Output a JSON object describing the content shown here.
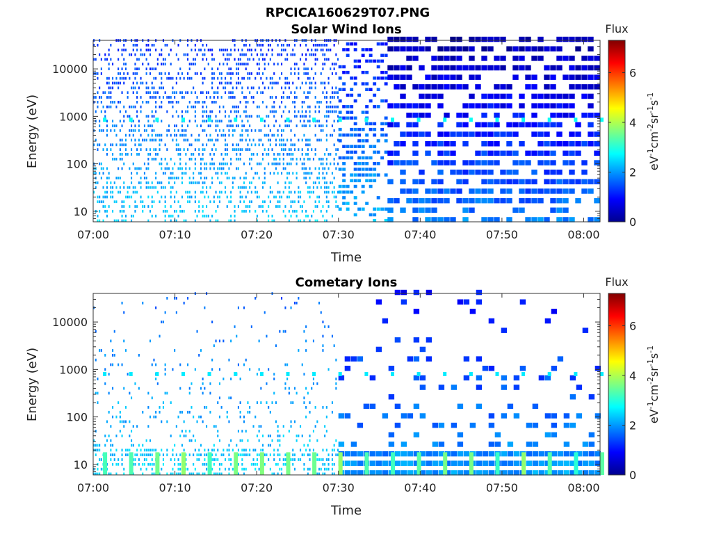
{
  "figure_title": "RPCICA160629T07.PNG",
  "colors": {
    "colormap": "jet",
    "background": "#ffffff"
  },
  "chart_data": [
    {
      "type": "heatmap",
      "title": "Solar Wind Ions",
      "xlabel": "Time",
      "ylabel": "Energy (eV)",
      "x_range": [
        "07:00",
        "08:02"
      ],
      "x_ticks": [
        "07:00",
        "07:10",
        "07:20",
        "07:30",
        "07:40",
        "07:50",
        "08:00"
      ],
      "y_scale": "log",
      "ylim": [
        6,
        40000
      ],
      "y_ticks": [
        10,
        100,
        1000,
        10000
      ],
      "colorbar": {
        "title": "Flux",
        "label": "eV-1cm-2sr-1s-1",
        "range": [
          0,
          7.3
        ],
        "ticks": [
          0,
          2,
          4,
          6
        ]
      },
      "segments": [
        {
          "x_start": "07:00",
          "x_end": "07:30",
          "energy_range": [
            6,
            40000
          ],
          "occupancy": 0.35,
          "flux_levels": [
            1.2,
            2.4
          ],
          "resolution": "fine"
        },
        {
          "x_start": "07:30",
          "x_end": "07:36",
          "energy_range": [
            6,
            40000
          ],
          "occupancy": 0.5,
          "flux_levels": [
            1.0,
            2.2
          ],
          "resolution": "medium"
        },
        {
          "x_start": "07:36",
          "x_end": "08:02",
          "energy_range": [
            6,
            40000
          ],
          "occupancy": 0.7,
          "flux_levels": [
            0.3,
            1.8
          ],
          "resolution": "coarse"
        }
      ],
      "features": [
        {
          "name": "Peak band",
          "energy": 850,
          "flux": 2.8,
          "period_min": 3.2
        }
      ]
    },
    {
      "type": "heatmap",
      "title": "Cometary Ions",
      "xlabel": "Time",
      "ylabel": "Energy (eV)",
      "x_range": [
        "07:00",
        "08:02"
      ],
      "x_ticks": [
        "07:00",
        "07:10",
        "07:20",
        "07:30",
        "07:40",
        "07:50",
        "08:00"
      ],
      "y_scale": "log",
      "ylim": [
        6,
        40000
      ],
      "y_ticks": [
        10,
        100,
        1000,
        10000
      ],
      "colorbar": {
        "title": "Flux",
        "label": "eV-1cm-2sr-1s-1",
        "range": [
          0,
          7.3
        ],
        "ticks": [
          0,
          2,
          4,
          6
        ]
      },
      "segments": [
        {
          "x_start": "07:00",
          "x_end": "07:30",
          "energy_range": [
            6,
            40000
          ],
          "occupancy": 0.08,
          "flux_levels": [
            1.6,
            2.4
          ],
          "resolution": "fine"
        },
        {
          "x_start": "07:30",
          "x_end": "08:02",
          "energy_range": [
            6,
            40000
          ],
          "occupancy": 0.2,
          "flux_levels": [
            1.0,
            2.0
          ],
          "resolution": "coarse"
        }
      ],
      "features": [
        {
          "name": "Low-energy band",
          "energy_range": [
            6,
            18
          ],
          "flux": 3.4,
          "period_min": 3.2
        },
        {
          "name": "Peak band",
          "energy": 800,
          "flux": 2.6,
          "period_min": 3.2
        }
      ]
    }
  ]
}
